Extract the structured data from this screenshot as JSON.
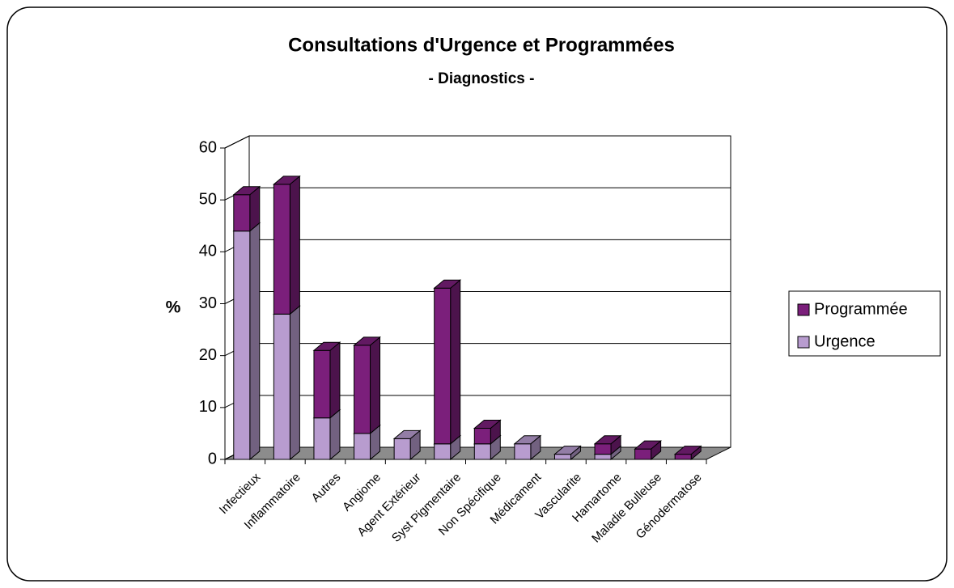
{
  "chart_data": {
    "type": "bar",
    "stacked": true,
    "title": "Consultations d'Urgence et Programmées",
    "subtitle": "- Diagnostics -",
    "ylabel": "%",
    "categories": [
      "Infectieux",
      "Inflammatoire",
      "Autres",
      "Angiome",
      "Agent Extérieur",
      "Syst Pigmentaire",
      "Non Spécifique",
      "Médicament",
      "Vascularite",
      "Hamartome",
      "Maladie Bulleuse",
      "Génodermatose"
    ],
    "series": [
      {
        "name": "Urgence",
        "color": "#b89ccf",
        "values": [
          44,
          28,
          8,
          5,
          4,
          3,
          3,
          3,
          1,
          1,
          0,
          0
        ]
      },
      {
        "name": "Programmée",
        "color": "#7b1f7b",
        "values": [
          7,
          25,
          13,
          17,
          0,
          30,
          3,
          0,
          0,
          2,
          2,
          1
        ]
      }
    ],
    "ylim": [
      0,
      60
    ],
    "yticks": [
      0,
      10,
      20,
      30,
      40,
      50,
      60
    ],
    "grid": true,
    "legend": "right"
  }
}
